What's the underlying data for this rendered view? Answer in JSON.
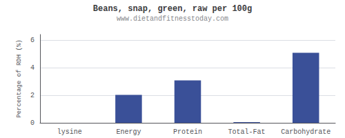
{
  "chart_data": {
    "type": "bar",
    "title": "Beans, snap, green, raw per 100g",
    "subtitle": "www.dietandfitnesstoday.com",
    "categories": [
      "lysine",
      "Energy",
      "Protein",
      "Total-Fat",
      "Carbohydrate"
    ],
    "values": [
      0.0,
      2.02,
      3.07,
      0.05,
      5.07
    ],
    "color": "#3a5098",
    "ylabel": "Percentage of RDH (%)",
    "ylim": [
      0,
      6.4
    ],
    "yticks": [
      0,
      2,
      4,
      6
    ],
    "grid": true
  }
}
